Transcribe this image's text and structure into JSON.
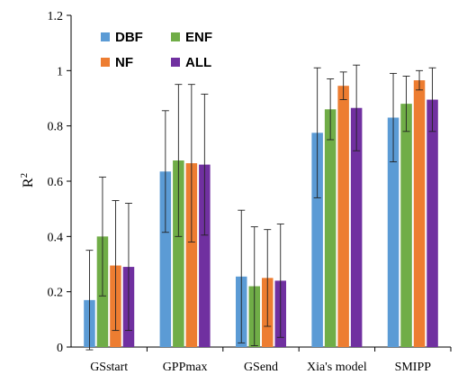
{
  "chart_data": {
    "type": "bar",
    "title": "",
    "xlabel": "",
    "ylabel": "R",
    "ylabel_superscript": "2",
    "ylim": [
      0,
      1.2
    ],
    "yticks": [
      "0",
      "0.2",
      "0.4",
      "0.6",
      "0.8",
      "1",
      "1.2"
    ],
    "categories": [
      "GSstart",
      "GPPmax",
      "GSend",
      "Xia's model",
      "SMIPP"
    ],
    "grid": false,
    "legend_position": "top-left",
    "series": [
      {
        "name": "DBF",
        "color": "#5b9bd5",
        "values": [
          0.17,
          0.635,
          0.255,
          0.775,
          0.83
        ],
        "error": [
          0.18,
          0.22,
          0.24,
          0.235,
          0.16
        ]
      },
      {
        "name": "ENF",
        "color": "#70ad47",
        "values": [
          0.4,
          0.675,
          0.22,
          0.86,
          0.88
        ],
        "error": [
          0.215,
          0.275,
          0.215,
          0.11,
          0.1
        ]
      },
      {
        "name": "NF",
        "color": "#ed7d31",
        "values": [
          0.295,
          0.665,
          0.25,
          0.945,
          0.965
        ],
        "error": [
          0.235,
          0.285,
          0.175,
          0.05,
          0.035
        ]
      },
      {
        "name": "ALL",
        "color": "#7030a0",
        "values": [
          0.29,
          0.66,
          0.24,
          0.865,
          0.895
        ],
        "error": [
          0.23,
          0.255,
          0.205,
          0.155,
          0.115
        ]
      }
    ]
  }
}
